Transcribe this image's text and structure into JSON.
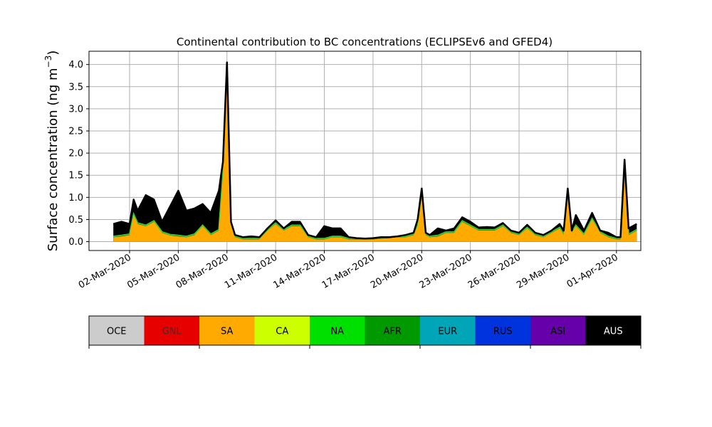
{
  "chart_data": {
    "type": "area",
    "stacked": true,
    "title": "Continental contribution to BC concentrations (ECLIPSEv6 and GFED4)",
    "ylabel": "Surface concentration (ng m",
    "ylabel_sup": "−3",
    "ylabel_close": ")",
    "xlabel": "",
    "x_axis_type": "date",
    "xlim": [
      "2020-02-28T12:00",
      "2020-04-02T12:00"
    ],
    "ylim": [
      -0.2,
      4.3
    ],
    "grid": true,
    "x_ticks": [
      {
        "date": "2020-03-02",
        "label": "02-Mar-2020"
      },
      {
        "date": "2020-03-05",
        "label": "05-Mar-2020"
      },
      {
        "date": "2020-03-08",
        "label": "08-Mar-2020"
      },
      {
        "date": "2020-03-11",
        "label": "11-Mar-2020"
      },
      {
        "date": "2020-03-14",
        "label": "14-Mar-2020"
      },
      {
        "date": "2020-03-17",
        "label": "17-Mar-2020"
      },
      {
        "date": "2020-03-20",
        "label": "20-Mar-2020"
      },
      {
        "date": "2020-03-23",
        "label": "23-Mar-2020"
      },
      {
        "date": "2020-03-26",
        "label": "26-Mar-2020"
      },
      {
        "date": "2020-03-29",
        "label": "29-Mar-2020"
      },
      {
        "date": "2020-04-01",
        "label": "01-Apr-2020"
      }
    ],
    "y_ticks": [
      {
        "value": 0.0,
        "label": "0.0"
      },
      {
        "value": 0.5,
        "label": "0.5"
      },
      {
        "value": 1.0,
        "label": "1.0"
      },
      {
        "value": 1.5,
        "label": "1.5"
      },
      {
        "value": 2.0,
        "label": "2.0"
      },
      {
        "value": 2.5,
        "label": "2.5"
      },
      {
        "value": 3.0,
        "label": "3.0"
      },
      {
        "value": 3.5,
        "label": "3.5"
      },
      {
        "value": 4.0,
        "label": "4.0"
      }
    ],
    "sa_series": {
      "name": "SA",
      "color": "#ffaa00",
      "points": [
        [
          "2020-03-01T00:00",
          0.1
        ],
        [
          "2020-03-01T12:00",
          0.12
        ],
        [
          "2020-03-02T00:00",
          0.15
        ],
        [
          "2020-03-02T06:00",
          0.6
        ],
        [
          "2020-03-02T12:00",
          0.4
        ],
        [
          "2020-03-03T00:00",
          0.35
        ],
        [
          "2020-03-03T12:00",
          0.45
        ],
        [
          "2020-03-04T00:00",
          0.2
        ],
        [
          "2020-03-04T12:00",
          0.14
        ],
        [
          "2020-03-05T00:00",
          0.12
        ],
        [
          "2020-03-05T12:00",
          0.1
        ],
        [
          "2020-03-06T00:00",
          0.15
        ],
        [
          "2020-03-06T12:00",
          0.35
        ],
        [
          "2020-03-07T00:00",
          0.15
        ],
        [
          "2020-03-07T12:00",
          0.25
        ],
        [
          "2020-03-07T18:00",
          1.5
        ],
        [
          "2020-03-08T00:00",
          3.9
        ],
        [
          "2020-03-08T06:00",
          0.4
        ],
        [
          "2020-03-08T12:00",
          0.1
        ],
        [
          "2020-03-09T00:00",
          0.05
        ],
        [
          "2020-03-09T12:00",
          0.05
        ],
        [
          "2020-03-10T00:00",
          0.05
        ],
        [
          "2020-03-10T12:00",
          0.25
        ],
        [
          "2020-03-11T00:00",
          0.4
        ],
        [
          "2020-03-11T12:00",
          0.25
        ],
        [
          "2020-03-12T00:00",
          0.35
        ],
        [
          "2020-03-12T12:00",
          0.35
        ],
        [
          "2020-03-13T00:00",
          0.1
        ],
        [
          "2020-03-13T12:00",
          0.05
        ],
        [
          "2020-03-14T00:00",
          0.05
        ],
        [
          "2020-03-14T12:00",
          0.1
        ],
        [
          "2020-03-15T00:00",
          0.1
        ],
        [
          "2020-03-15T12:00",
          0.05
        ],
        [
          "2020-03-16T00:00",
          0.05
        ],
        [
          "2020-03-16T12:00",
          0.05
        ],
        [
          "2020-03-17T00:00",
          0.05
        ],
        [
          "2020-03-17T12:00",
          0.07
        ],
        [
          "2020-03-18T00:00",
          0.08
        ],
        [
          "2020-03-18T12:00",
          0.1
        ],
        [
          "2020-03-19T00:00",
          0.1
        ],
        [
          "2020-03-19T12:00",
          0.15
        ],
        [
          "2020-03-19T18:00",
          0.35
        ],
        [
          "2020-03-20T00:00",
          1.0
        ],
        [
          "2020-03-20T06:00",
          0.15
        ],
        [
          "2020-03-20T12:00",
          0.1
        ],
        [
          "2020-03-21T00:00",
          0.12
        ],
        [
          "2020-03-21T12:00",
          0.2
        ],
        [
          "2020-03-22T00:00",
          0.2
        ],
        [
          "2020-03-22T12:00",
          0.45
        ],
        [
          "2020-03-23T00:00",
          0.35
        ],
        [
          "2020-03-23T12:00",
          0.25
        ],
        [
          "2020-03-24T00:00",
          0.25
        ],
        [
          "2020-03-24T12:00",
          0.25
        ],
        [
          "2020-03-25T00:00",
          0.35
        ],
        [
          "2020-03-25T12:00",
          0.2
        ],
        [
          "2020-03-26T00:00",
          0.15
        ],
        [
          "2020-03-26T12:00",
          0.3
        ],
        [
          "2020-03-27T00:00",
          0.15
        ],
        [
          "2020-03-27T12:00",
          0.1
        ],
        [
          "2020-03-28T00:00",
          0.2
        ],
        [
          "2020-03-28T12:00",
          0.3
        ],
        [
          "2020-03-28T18:00",
          0.15
        ],
        [
          "2020-03-29T00:00",
          1.1
        ],
        [
          "2020-03-29T06:00",
          0.2
        ],
        [
          "2020-03-29T12:00",
          0.35
        ],
        [
          "2020-03-30T00:00",
          0.15
        ],
        [
          "2020-03-30T12:00",
          0.5
        ],
        [
          "2020-03-31T00:00",
          0.2
        ],
        [
          "2020-03-31T12:00",
          0.1
        ],
        [
          "2020-04-01T00:00",
          0.05
        ],
        [
          "2020-04-01T06:00",
          0.05
        ],
        [
          "2020-04-01T12:00",
          1.7
        ],
        [
          "2020-04-01T18:00",
          0.15
        ],
        [
          "2020-04-02T00:00",
          0.2
        ],
        [
          "2020-04-02T06:00",
          0.25
        ]
      ]
    },
    "total_series": {
      "name": "AUS",
      "color": "#000000",
      "points": [
        [
          "2020-03-01T00:00",
          0.4
        ],
        [
          "2020-03-01T12:00",
          0.45
        ],
        [
          "2020-03-02T00:00",
          0.4
        ],
        [
          "2020-03-02T06:00",
          0.95
        ],
        [
          "2020-03-02T12:00",
          0.7
        ],
        [
          "2020-03-03T00:00",
          1.05
        ],
        [
          "2020-03-03T12:00",
          0.95
        ],
        [
          "2020-03-04T00:00",
          0.45
        ],
        [
          "2020-03-04T12:00",
          0.8
        ],
        [
          "2020-03-05T00:00",
          1.15
        ],
        [
          "2020-03-05T12:00",
          0.7
        ],
        [
          "2020-03-06T00:00",
          0.75
        ],
        [
          "2020-03-06T12:00",
          0.85
        ],
        [
          "2020-03-07T00:00",
          0.65
        ],
        [
          "2020-03-07T12:00",
          1.15
        ],
        [
          "2020-03-07T18:00",
          1.8
        ],
        [
          "2020-03-08T00:00",
          4.05
        ],
        [
          "2020-03-08T06:00",
          0.45
        ],
        [
          "2020-03-08T12:00",
          0.15
        ],
        [
          "2020-03-09T00:00",
          0.1
        ],
        [
          "2020-03-09T12:00",
          0.12
        ],
        [
          "2020-03-10T00:00",
          0.1
        ],
        [
          "2020-03-10T12:00",
          0.3
        ],
        [
          "2020-03-11T00:00",
          0.48
        ],
        [
          "2020-03-11T12:00",
          0.3
        ],
        [
          "2020-03-12T00:00",
          0.45
        ],
        [
          "2020-03-12T12:00",
          0.45
        ],
        [
          "2020-03-13T00:00",
          0.15
        ],
        [
          "2020-03-13T12:00",
          0.1
        ],
        [
          "2020-03-14T00:00",
          0.35
        ],
        [
          "2020-03-14T12:00",
          0.3
        ],
        [
          "2020-03-15T00:00",
          0.3
        ],
        [
          "2020-03-15T12:00",
          0.1
        ],
        [
          "2020-03-16T00:00",
          0.08
        ],
        [
          "2020-03-16T12:00",
          0.07
        ],
        [
          "2020-03-17T00:00",
          0.08
        ],
        [
          "2020-03-17T12:00",
          0.1
        ],
        [
          "2020-03-18T00:00",
          0.1
        ],
        [
          "2020-03-18T12:00",
          0.12
        ],
        [
          "2020-03-19T00:00",
          0.15
        ],
        [
          "2020-03-19T12:00",
          0.2
        ],
        [
          "2020-03-19T18:00",
          0.5
        ],
        [
          "2020-03-20T00:00",
          1.2
        ],
        [
          "2020-03-20T06:00",
          0.2
        ],
        [
          "2020-03-20T12:00",
          0.15
        ],
        [
          "2020-03-21T00:00",
          0.3
        ],
        [
          "2020-03-21T12:00",
          0.25
        ],
        [
          "2020-03-22T00:00",
          0.3
        ],
        [
          "2020-03-22T12:00",
          0.55
        ],
        [
          "2020-03-23T00:00",
          0.45
        ],
        [
          "2020-03-23T12:00",
          0.32
        ],
        [
          "2020-03-24T00:00",
          0.33
        ],
        [
          "2020-03-24T12:00",
          0.32
        ],
        [
          "2020-03-25T00:00",
          0.42
        ],
        [
          "2020-03-25T12:00",
          0.25
        ],
        [
          "2020-03-26T00:00",
          0.2
        ],
        [
          "2020-03-26T12:00",
          0.38
        ],
        [
          "2020-03-27T00:00",
          0.2
        ],
        [
          "2020-03-27T12:00",
          0.15
        ],
        [
          "2020-03-28T00:00",
          0.25
        ],
        [
          "2020-03-28T12:00",
          0.4
        ],
        [
          "2020-03-28T18:00",
          0.25
        ],
        [
          "2020-03-29T00:00",
          1.2
        ],
        [
          "2020-03-29T06:00",
          0.25
        ],
        [
          "2020-03-29T12:00",
          0.6
        ],
        [
          "2020-03-30T00:00",
          0.25
        ],
        [
          "2020-03-30T12:00",
          0.65
        ],
        [
          "2020-03-31T00:00",
          0.25
        ],
        [
          "2020-03-31T12:00",
          0.2
        ],
        [
          "2020-04-01T00:00",
          0.1
        ],
        [
          "2020-04-01T06:00",
          0.1
        ],
        [
          "2020-04-01T12:00",
          1.85
        ],
        [
          "2020-04-01T18:00",
          0.3
        ],
        [
          "2020-04-02T00:00",
          0.35
        ],
        [
          "2020-04-02T06:00",
          0.4
        ]
      ]
    },
    "legend": [
      {
        "label": "OCE",
        "color": "#cccccc",
        "text_color": "#000000"
      },
      {
        "label": "GNL",
        "color": "#e60000",
        "text_color": "#333333"
      },
      {
        "label": "SA",
        "color": "#ffaa00",
        "text_color": "#000000"
      },
      {
        "label": "CA",
        "color": "#ccff00",
        "text_color": "#000000"
      },
      {
        "label": "NA",
        "color": "#00e000",
        "text_color": "#000000"
      },
      {
        "label": "AFR",
        "color": "#009900",
        "text_color": "#000000"
      },
      {
        "label": "EUR",
        "color": "#00a6b8",
        "text_color": "#000000"
      },
      {
        "label": "RUS",
        "color": "#0033dd",
        "text_color": "#000000"
      },
      {
        "label": "ASI",
        "color": "#6600aa",
        "text_color": "#000000"
      },
      {
        "label": "AUS",
        "color": "#000000",
        "text_color": "#ffffff"
      }
    ],
    "legend_placement": "below"
  }
}
